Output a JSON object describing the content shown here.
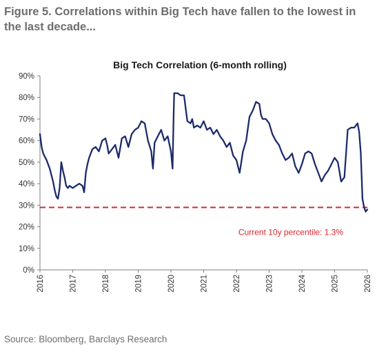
{
  "figure": {
    "title": "Figure 5. Correlations within Big Tech have fallen to the lowest in the last decade...",
    "source": "Source: Bloomberg, Barclays Research"
  },
  "chart_data": {
    "type": "line",
    "title": "Big Tech Correlation (6-month rolling)",
    "xlabel": "",
    "ylabel": "",
    "ylim": [
      0,
      90
    ],
    "xlim": [
      2016,
      2026
    ],
    "y_ticks": [
      "0%",
      "10%",
      "20%",
      "30%",
      "40%",
      "50%",
      "60%",
      "70%",
      "80%",
      "90%"
    ],
    "x_ticks": [
      "2016",
      "2017",
      "2018",
      "2019",
      "2020",
      "2021",
      "2022",
      "2023",
      "2024",
      "2025",
      "2026"
    ],
    "grid": false,
    "colors": {
      "series": "#1b2a6b",
      "reference": "#d9262c"
    },
    "series": [
      {
        "x": [
          2016.0,
          2016.05,
          2016.1,
          2016.2,
          2016.3,
          2016.4,
          2016.45,
          2016.5,
          2016.55,
          2016.6,
          2016.65,
          2016.7,
          2016.75,
          2016.8,
          2016.85,
          2016.9,
          2017.0,
          2017.1,
          2017.2,
          2017.3,
          2017.35,
          2017.4,
          2017.45,
          2017.5,
          2017.6,
          2017.7,
          2017.8,
          2017.9,
          2018.0,
          2018.05,
          2018.1,
          2018.2,
          2018.3,
          2018.4,
          2018.5,
          2018.6,
          2018.7,
          2018.8,
          2018.9,
          2019.0,
          2019.1,
          2019.2,
          2019.3,
          2019.4,
          2019.45,
          2019.5,
          2019.6,
          2019.7,
          2019.8,
          2019.9,
          2020.0,
          2020.05,
          2020.08,
          2020.1,
          2020.2,
          2020.3,
          2020.4,
          2020.5,
          2020.6,
          2020.65,
          2020.7,
          2020.8,
          2020.9,
          2021.0,
          2021.1,
          2021.2,
          2021.3,
          2021.4,
          2021.5,
          2021.6,
          2021.7,
          2021.8,
          2021.9,
          2022.0,
          2022.1,
          2022.2,
          2022.3,
          2022.4,
          2022.5,
          2022.6,
          2022.7,
          2022.75,
          2022.8,
          2022.9,
          2023.0,
          2023.1,
          2023.2,
          2023.3,
          2023.4,
          2023.5,
          2023.6,
          2023.7,
          2023.8,
          2023.9,
          2024.0,
          2024.1,
          2024.2,
          2024.3,
          2024.4,
          2024.5,
          2024.6,
          2024.7,
          2024.8,
          2024.9,
          2025.0,
          2025.1,
          2025.2,
          2025.3,
          2025.4,
          2025.5,
          2025.6,
          2025.7,
          2025.75,
          2025.8,
          2025.85,
          2025.9,
          2025.95,
          2026.0
        ],
        "values": [
          63,
          57,
          54,
          51,
          47,
          41,
          37,
          34,
          33,
          38,
          50,
          46,
          43,
          39,
          38,
          39,
          38,
          39,
          40,
          39,
          36,
          45,
          49,
          52,
          56,
          57,
          55,
          60,
          61,
          58,
          54,
          56,
          58,
          52,
          61,
          62,
          57,
          63,
          65,
          66,
          69,
          68,
          60,
          55,
          47,
          59,
          62,
          65,
          60,
          62,
          55,
          47,
          70,
          82,
          82,
          81,
          81,
          69,
          68,
          70,
          66,
          67,
          66,
          69,
          65,
          66,
          63,
          65,
          62,
          60,
          57,
          59,
          53,
          51,
          45,
          55,
          60,
          71,
          74,
          78,
          77,
          72,
          70,
          70,
          68,
          63,
          60,
          58,
          54,
          51,
          52,
          54,
          48,
          45,
          49,
          54,
          55,
          54,
          49,
          45,
          41,
          44,
          46,
          49,
          52,
          50,
          41,
          43,
          65,
          66,
          66,
          68,
          64,
          54,
          33,
          29,
          27,
          28
        ]
      }
    ],
    "reference_line": {
      "value": 29,
      "label": "Current 10y percentile: 1.3%"
    }
  }
}
